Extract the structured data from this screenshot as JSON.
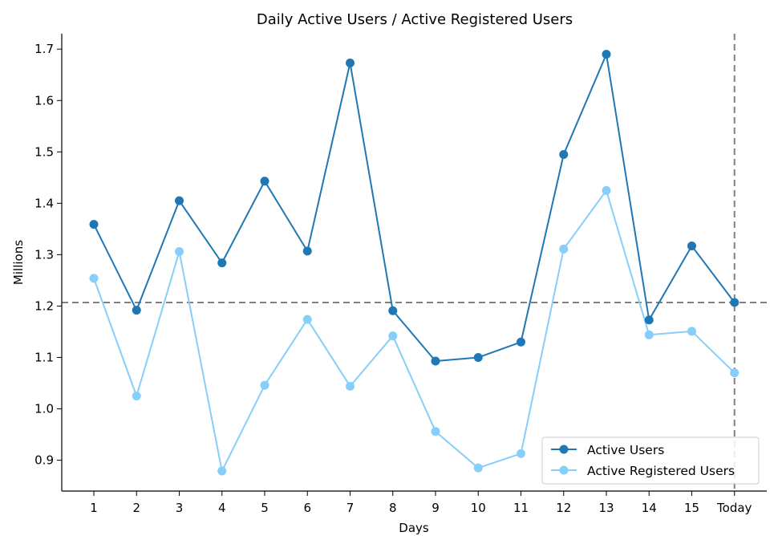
{
  "chart_data": {
    "type": "line",
    "title": "Daily Active Users / Active Registered Users",
    "xlabel": "Days",
    "ylabel": "Millions",
    "categories": [
      "1",
      "2",
      "3",
      "4",
      "5",
      "6",
      "7",
      "8",
      "9",
      "10",
      "11",
      "12",
      "13",
      "14",
      "15",
      "Today"
    ],
    "ylim": [
      0.84,
      1.73
    ],
    "yticks": [
      "0.9",
      "1.0",
      "1.1",
      "1.2",
      "1.3",
      "1.4",
      "1.5",
      "1.6",
      "1.7"
    ],
    "series": [
      {
        "name": "Active Users",
        "color": "#1f77b4",
        "values": [
          1.359,
          1.192,
          1.405,
          1.284,
          1.443,
          1.307,
          1.673,
          1.191,
          1.093,
          1.1,
          1.13,
          1.495,
          1.69,
          1.173,
          1.317,
          1.207
        ]
      },
      {
        "name": "Active Registered Users",
        "color": "#87cefa",
        "values": [
          1.254,
          1.025,
          1.306,
          0.879,
          1.046,
          1.174,
          1.044,
          1.142,
          0.956,
          0.885,
          0.913,
          1.311,
          1.425,
          1.144,
          1.151,
          1.07
        ]
      }
    ],
    "reference_lines": {
      "horizontal": {
        "value": 1.207,
        "style": "dashed",
        "color": "#808080"
      },
      "vertical": {
        "category": "Today",
        "style": "dashed",
        "color": "#808080"
      }
    },
    "grid": false,
    "legend_position": "lower-right"
  }
}
